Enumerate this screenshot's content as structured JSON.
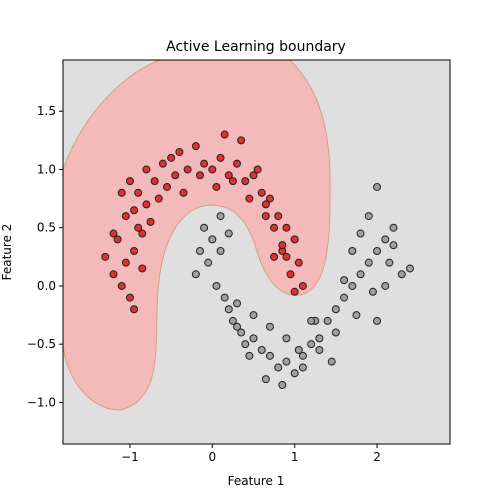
{
  "chart_data": {
    "type": "scatter",
    "title": "Active Learning boundary",
    "xlabel": "Feature 1",
    "ylabel": "Feature 2",
    "xlim": [
      -1.813,
      2.886
    ],
    "ylim": [
      -1.357,
      1.94
    ],
    "xticks": [
      {
        "value": -1,
        "label": "−1"
      },
      0,
      1,
      2
    ],
    "yticks": [
      {
        "value": -1.0,
        "label": "−1.0"
      },
      {
        "value": -0.5,
        "label": "−0.5"
      },
      {
        "value": 0.0,
        "label": "0.0"
      },
      0.5,
      {
        "value": 1.0,
        "label": "1.0"
      },
      1.5
    ],
    "background_color": "#dfdfdf",
    "region_color": "#f4b9b9",
    "series": [
      {
        "color": "#e03030",
        "x": [
          -1.3,
          -1.2,
          -1.15,
          -1.1,
          -1.05,
          -1.0,
          -0.95,
          -0.9,
          -0.85,
          -0.8,
          -1.1,
          -1.0,
          -0.9,
          -0.8,
          -0.7,
          -0.6,
          -0.5,
          -0.4,
          -0.3,
          -0.2,
          -0.1,
          0.0,
          0.1,
          0.2,
          0.3,
          0.4,
          0.5,
          0.6,
          0.7,
          0.8,
          0.9,
          1.0,
          1.05,
          1.1,
          0.95,
          0.85,
          0.75,
          0.65,
          -0.75,
          -0.55,
          -0.35,
          -0.15,
          0.05,
          0.25,
          0.45,
          0.65,
          0.85,
          -0.95,
          -0.85,
          -0.65,
          -0.45,
          0.15,
          0.35,
          0.55,
          0.75,
          0.9,
          1.0,
          -1.2,
          -1.05,
          -0.95
        ],
        "values": [
          0.25,
          0.1,
          0.4,
          0.0,
          0.6,
          -0.1,
          0.3,
          0.5,
          0.15,
          0.7,
          0.8,
          0.9,
          0.8,
          1.0,
          0.9,
          1.05,
          1.1,
          1.15,
          1.0,
          1.2,
          1.05,
          1.0,
          1.1,
          0.95,
          1.05,
          0.9,
          0.95,
          0.8,
          0.75,
          0.6,
          0.5,
          0.4,
          0.2,
          0.0,
          0.1,
          0.3,
          0.5,
          0.7,
          0.55,
          0.85,
          0.8,
          0.95,
          0.85,
          0.9,
          0.75,
          0.6,
          0.35,
          -0.2,
          0.45,
          0.75,
          0.95,
          1.3,
          1.25,
          1.0,
          0.25,
          0.25,
          -0.05,
          0.45,
          0.2,
          0.65
        ]
      },
      {
        "color": "#a0a0a0",
        "x": [
          -0.1,
          0.0,
          0.1,
          -0.05,
          0.05,
          -0.2,
          0.15,
          0.2,
          0.25,
          0.3,
          0.35,
          0.4,
          0.5,
          0.6,
          0.7,
          0.8,
          0.9,
          1.0,
          1.1,
          1.2,
          1.3,
          1.4,
          1.5,
          1.6,
          1.7,
          1.8,
          1.9,
          2.0,
          2.1,
          2.2,
          2.3,
          2.4,
          2.0,
          1.9,
          1.8,
          1.7,
          1.6,
          2.1,
          2.2,
          0.3,
          0.5,
          0.7,
          0.9,
          1.1,
          1.3,
          1.5,
          0.45,
          0.65,
          0.85,
          1.05,
          1.25,
          1.45,
          0.2,
          1.75,
          1.95,
          -0.15,
          0.1,
          2.0,
          2.15,
          1.2
        ],
        "values": [
          0.5,
          0.4,
          0.3,
          0.2,
          0.0,
          0.1,
          -0.1,
          -0.2,
          -0.3,
          -0.35,
          -0.4,
          -0.5,
          -0.45,
          -0.55,
          -0.6,
          -0.7,
          -0.65,
          -0.75,
          -0.6,
          -0.5,
          -0.45,
          -0.3,
          -0.2,
          -0.1,
          0.0,
          0.1,
          0.2,
          0.3,
          0.4,
          0.5,
          0.1,
          0.15,
          0.85,
          0.6,
          0.45,
          0.3,
          0.05,
          0.0,
          0.35,
          -0.15,
          -0.25,
          -0.35,
          -0.45,
          -0.7,
          -0.55,
          -0.4,
          -0.6,
          -0.8,
          -0.85,
          -0.55,
          -0.3,
          -0.65,
          0.45,
          -0.25,
          -0.05,
          0.3,
          0.6,
          -0.3,
          0.2,
          -0.3
        ]
      }
    ]
  }
}
